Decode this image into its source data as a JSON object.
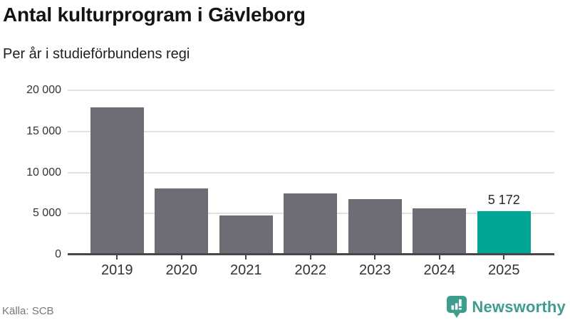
{
  "header": {
    "title": "Antal kulturprogram i Gävleborg",
    "subtitle": "Per år i studieförbundens regi"
  },
  "footer": {
    "source": "Källa: SCB",
    "brand_name": "Newsworthy",
    "brand_icon": "newsworthy-speech-bubble-chart-icon"
  },
  "colors": {
    "bar": "#6d6d75",
    "highlight": "#00a596",
    "grid": "#e2e2e2",
    "axis": "#47474a",
    "tick_label": "#333333",
    "brand": "#3f9d8e",
    "value_label": "#262626"
  },
  "chart_data": {
    "type": "bar",
    "title": "Antal kulturprogram i Gävleborg",
    "subtitle": "Per år i studieförbundens regi",
    "categories": [
      "2019",
      "2020",
      "2021",
      "2022",
      "2023",
      "2024",
      "2025"
    ],
    "values": [
      17800,
      8000,
      4700,
      7400,
      6650,
      5500,
      5172
    ],
    "highlight_index": 6,
    "value_labels": [
      null,
      null,
      null,
      null,
      null,
      null,
      "5 172"
    ],
    "xlabel": "",
    "ylabel": "",
    "ylim": [
      0,
      20000
    ],
    "yticks": [
      {
        "value": 0,
        "label": "0"
      },
      {
        "value": 5000,
        "label": "5 000"
      },
      {
        "value": 10000,
        "label": "10 000"
      },
      {
        "value": 15000,
        "label": "15 000"
      },
      {
        "value": 20000,
        "label": "20 000"
      }
    ],
    "grid": "horizontal",
    "legend": "none"
  }
}
